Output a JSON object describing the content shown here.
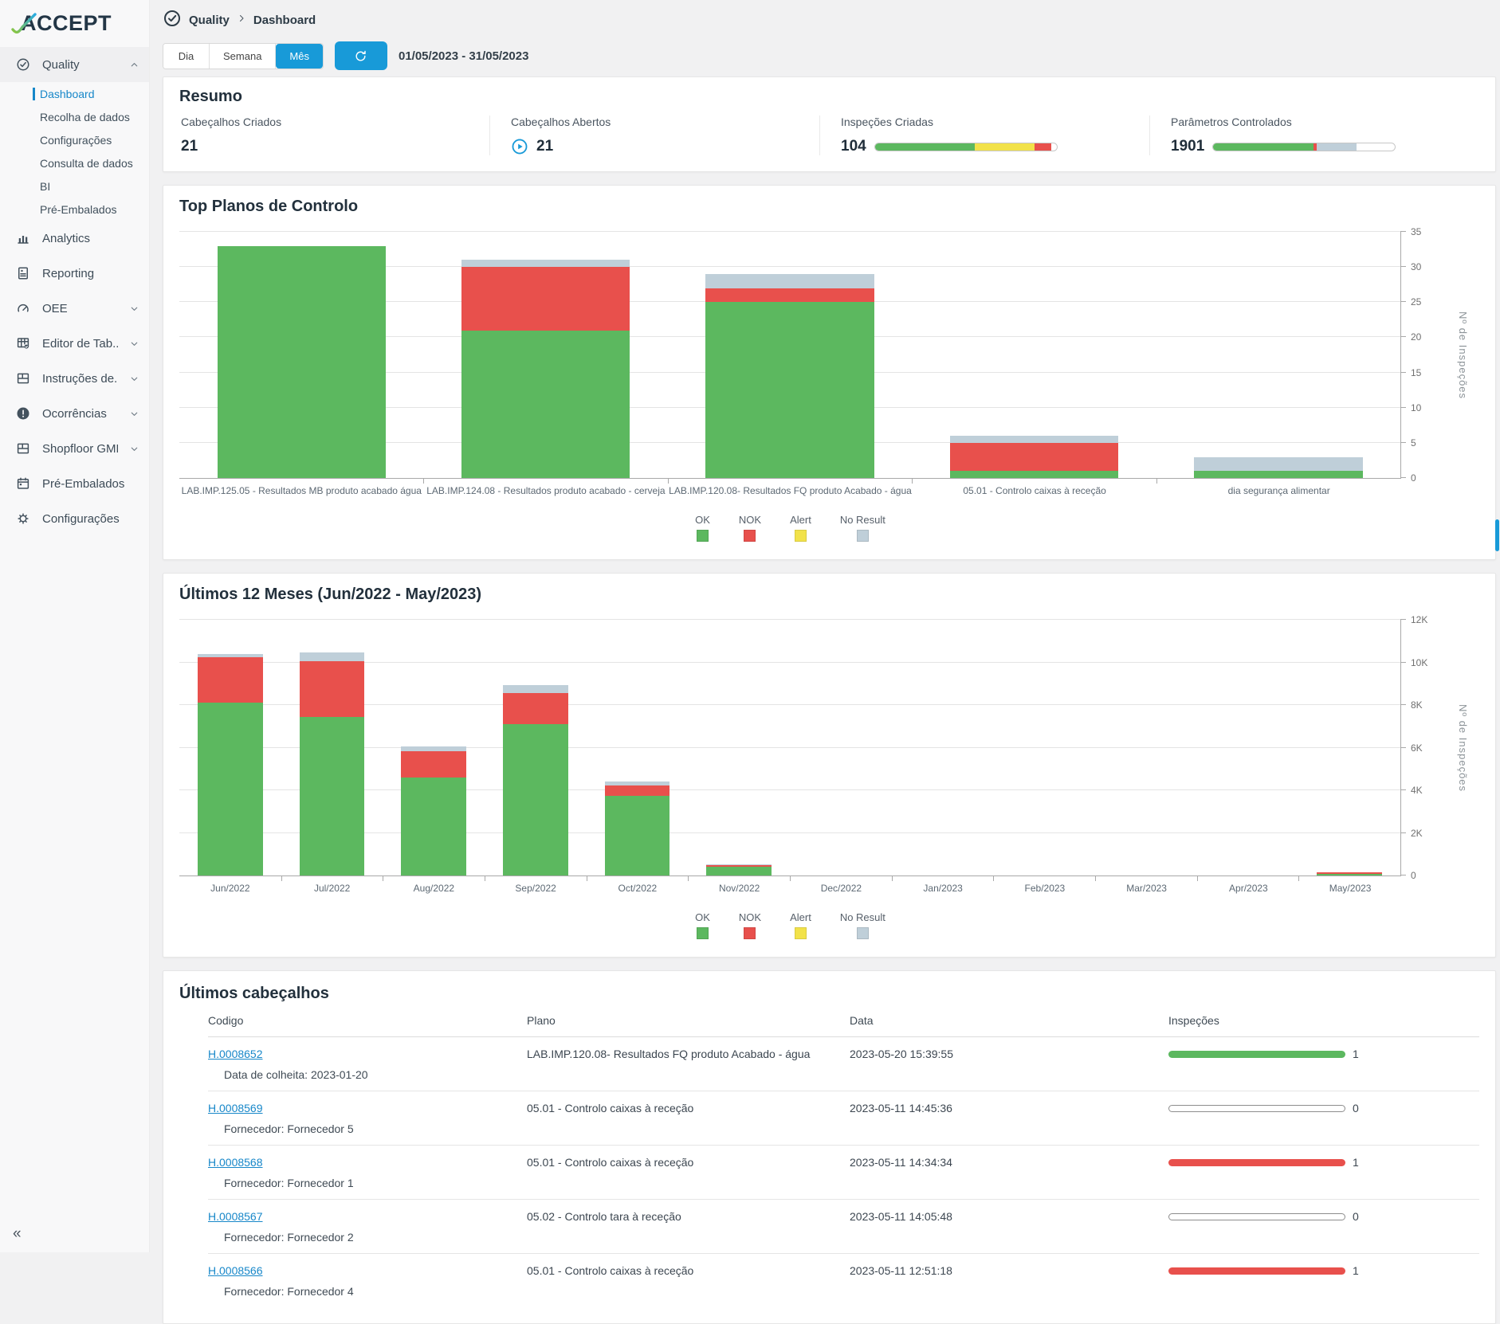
{
  "app": {
    "logo_text": "ACCEPT",
    "collapse_glyph": "«"
  },
  "colors": {
    "ok": "#5cb85f",
    "nok": "#e8504c",
    "alert": "#f2e24a",
    "no_result": "#bfcfd9",
    "accent": "#189ad8",
    "link": "#1787c9"
  },
  "sidebar": {
    "items": [
      {
        "label": "Quality",
        "icon": "check-circle",
        "type": "section",
        "active": true,
        "chevron": "up"
      },
      {
        "label": "Dashboard",
        "type": "sub",
        "selected": true
      },
      {
        "label": "Recolha de dados",
        "type": "sub"
      },
      {
        "label": "Configurações",
        "type": "sub"
      },
      {
        "label": "Consulta de dados",
        "type": "sub"
      },
      {
        "label": "BI",
        "type": "sub"
      },
      {
        "label": "Pré-Embalados",
        "type": "sub"
      },
      {
        "label": "Analytics",
        "icon": "bar-chart",
        "type": "section"
      },
      {
        "label": "Reporting",
        "icon": "report",
        "type": "section"
      },
      {
        "label": "OEE",
        "icon": "gauge",
        "type": "section",
        "chevron": "down"
      },
      {
        "label": "Editor de Tab...",
        "icon": "table-edit",
        "type": "section",
        "chevron": "down"
      },
      {
        "label": "Instruções de...",
        "icon": "layout",
        "type": "section",
        "chevron": "down"
      },
      {
        "label": "Ocorrências",
        "icon": "alert-circle",
        "type": "section",
        "chevron": "down"
      },
      {
        "label": "Shopfloor GML",
        "icon": "layout",
        "type": "section",
        "chevron": "down"
      },
      {
        "label": "Pré-Embalados",
        "icon": "calendar",
        "type": "section"
      },
      {
        "label": "Configurações",
        "icon": "gear",
        "type": "section"
      }
    ]
  },
  "breadcrumb": {
    "icon": "check-circle",
    "section": "Quality",
    "page": "Dashboard"
  },
  "toolbar": {
    "periods": [
      "Dia",
      "Semana",
      "Mês"
    ],
    "selected_period": "Mês",
    "refresh_icon": "refresh",
    "date_range": "01/05/2023 - 31/05/2023"
  },
  "summary": {
    "title": "Resumo",
    "stats": [
      {
        "label": "Cabeçalhos Criados",
        "value": "21"
      },
      {
        "label": "Cabeçalhos Abertos",
        "value": "21",
        "icon": "play-circle"
      },
      {
        "label": "Inspeções Criadas",
        "value": "104",
        "bar": [
          {
            "key": "ok",
            "pct": 55
          },
          {
            "key": "alert",
            "pct": 33
          },
          {
            "key": "nok",
            "pct": 9
          }
        ]
      },
      {
        "label": "Parâmetros Controlados",
        "value": "1901",
        "bar": [
          {
            "key": "ok",
            "pct": 55
          },
          {
            "key": "nok",
            "pct": 2
          },
          {
            "key": "no_result",
            "pct": 22
          }
        ]
      }
    ]
  },
  "chart_data": [
    {
      "type": "bar",
      "stacked": true,
      "title": "Top Planos de Controlo",
      "categories": [
        "LAB.IMP.125.05 - Resultados MB produto acabado água",
        "LAB.IMP.124.08 - Resultados produto acabado - cerveja",
        "LAB.IMP.120.08- Resultados FQ produto Acabado - água",
        "05.01 - Controlo caixas à receção",
        "dia segurança alimentar"
      ],
      "series": [
        {
          "name": "OK",
          "key": "ok",
          "values": [
            33,
            21,
            25,
            1,
            1
          ]
        },
        {
          "name": "NOK",
          "key": "nok",
          "values": [
            0,
            9,
            2,
            4,
            0
          ]
        },
        {
          "name": "Alert",
          "key": "alert",
          "values": [
            0,
            0,
            0,
            0,
            0
          ]
        },
        {
          "name": "No Result",
          "key": "no_result",
          "values": [
            0,
            1,
            2,
            1,
            2
          ]
        }
      ],
      "ylabel": "Nº de Inspeções",
      "ylim": [
        0,
        35
      ],
      "yticks": [
        0,
        5,
        10,
        15,
        20,
        25,
        30,
        35
      ],
      "ytick_labels": [
        "0",
        "5",
        "10",
        "15",
        "20",
        "25",
        "30",
        "35"
      ],
      "grid": true,
      "yaxis_side": "right",
      "legend_position": "bottom-center"
    },
    {
      "type": "bar",
      "stacked": true,
      "title": "Últimos 12 Meses (Jun/2022 - May/2023)",
      "categories": [
        "Jun/2022",
        "Jul/2022",
        "Aug/2022",
        "Sep/2022",
        "Oct/2022",
        "Nov/2022",
        "Dec/2022",
        "Jan/2023",
        "Feb/2023",
        "Mar/2023",
        "Apr/2023",
        "May/2023"
      ],
      "series": [
        {
          "name": "OK",
          "key": "ok",
          "values": [
            8100,
            7450,
            4600,
            7100,
            3750,
            400,
            0,
            0,
            0,
            0,
            0,
            60
          ]
        },
        {
          "name": "NOK",
          "key": "nok",
          "values": [
            2150,
            2600,
            1250,
            1450,
            480,
            80,
            0,
            0,
            0,
            0,
            0,
            100
          ]
        },
        {
          "name": "Alert",
          "key": "alert",
          "values": [
            0,
            0,
            0,
            0,
            0,
            0,
            0,
            0,
            0,
            0,
            0,
            0
          ]
        },
        {
          "name": "No Result",
          "key": "no_result",
          "values": [
            150,
            400,
            200,
            400,
            170,
            40,
            0,
            0,
            0,
            0,
            0,
            0
          ]
        }
      ],
      "ylabel": "Nº de Inspeções",
      "ylim": [
        0,
        12000
      ],
      "yticks": [
        0,
        2000,
        4000,
        6000,
        8000,
        10000,
        12000
      ],
      "ytick_labels": [
        "0",
        "2K",
        "4K",
        "6K",
        "8K",
        "10K",
        "12K"
      ],
      "grid": true,
      "yaxis_side": "right",
      "legend_position": "bottom-center"
    }
  ],
  "table": {
    "title": "Últimos cabeçalhos",
    "columns": [
      "Codigo",
      "Plano",
      "Data",
      "Inspeções"
    ],
    "rows": [
      {
        "code": "H.0008652",
        "sub": "Data de colheita: 2023-01-20",
        "plano": "LAB.IMP.120.08- Resultados FQ produto Acabado - água",
        "data": "2023-05-20 15:39:55",
        "inspections": "1",
        "bar": "ok"
      },
      {
        "code": "H.0008569",
        "sub": "Fornecedor: Fornecedor 5",
        "plano": "05.01 - Controlo caixas à receção",
        "data": "2023-05-11 14:45:36",
        "inspections": "0",
        "bar": "empty"
      },
      {
        "code": "H.0008568",
        "sub": "Fornecedor: Fornecedor 1",
        "plano": "05.01 - Controlo caixas à receção",
        "data": "2023-05-11 14:34:34",
        "inspections": "1",
        "bar": "nok"
      },
      {
        "code": "H.0008567",
        "sub": "Fornecedor: Fornecedor 2",
        "plano": "05.02 - Controlo tara à receção",
        "data": "2023-05-11 14:05:48",
        "inspections": "0",
        "bar": "empty"
      },
      {
        "code": "H.0008566",
        "sub": "Fornecedor: Fornecedor 4",
        "plano": "05.01 - Controlo caixas à receção",
        "data": "2023-05-11 12:51:18",
        "inspections": "1",
        "bar": "nok"
      }
    ]
  }
}
